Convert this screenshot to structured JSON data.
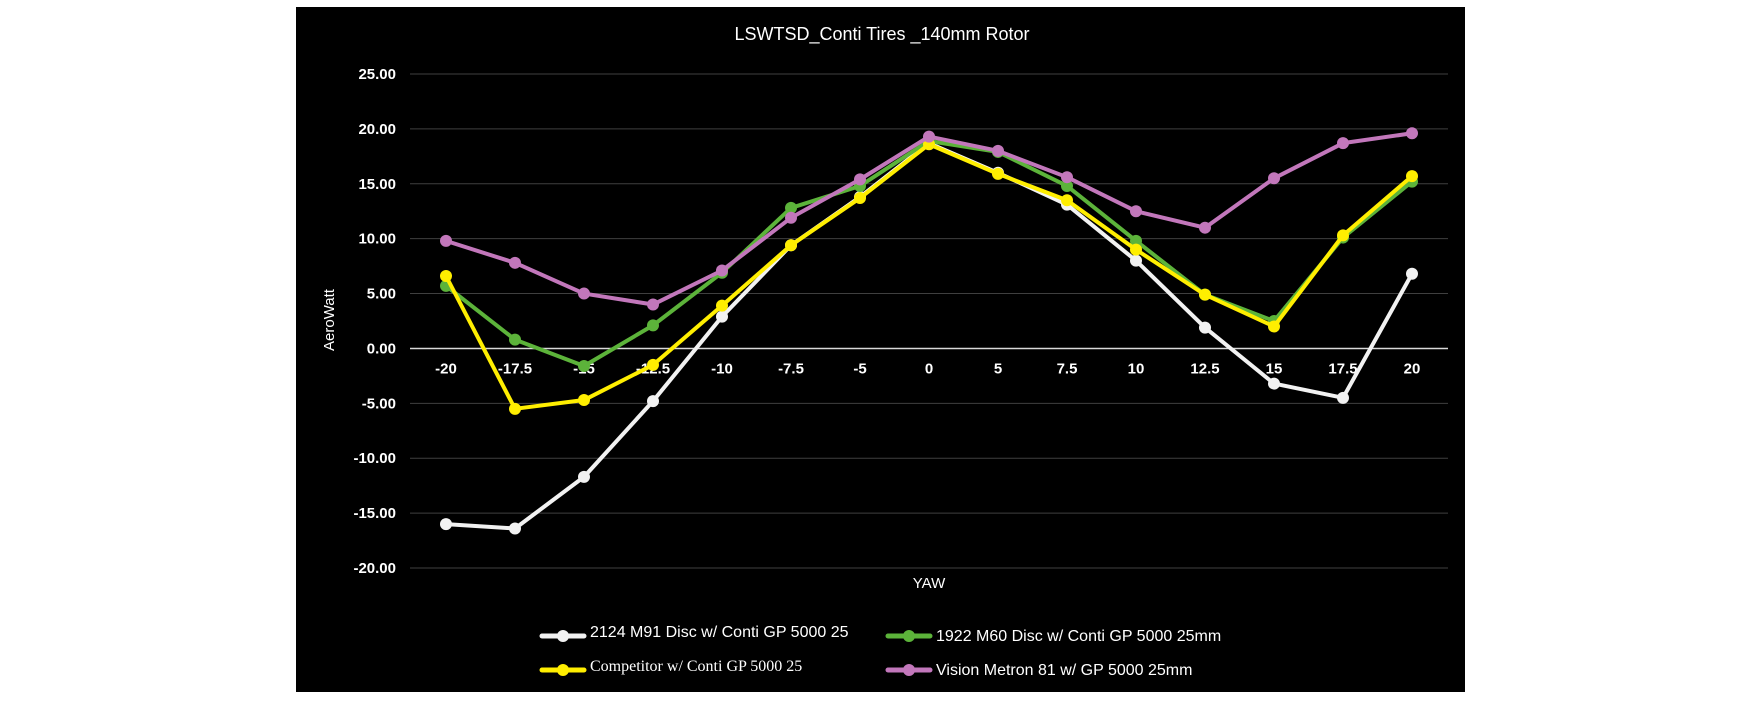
{
  "chart_data": {
    "type": "line",
    "title": "LSWTSD_Conti Tires _140mm Rotor",
    "xlabel": "YAW",
    "ylabel": "AeroWatt",
    "x": [
      "-20",
      "-17.5",
      "-15",
      "-12.5",
      "-10",
      "-7.5",
      "-5",
      "0",
      "5",
      "7.5",
      "10",
      "12.5",
      "15",
      "17.5",
      "20"
    ],
    "ylim": [
      -20,
      25
    ],
    "yticks": [
      "25.00",
      "20.00",
      "15.00",
      "10.00",
      "5.00",
      "0.00",
      "-5.00",
      "-10.00",
      "-15.00",
      "-20.00"
    ],
    "grid": true,
    "legend_position": "bottom",
    "series": [
      {
        "name": "2124 M91 Disc w/ Conti GP 5000 25",
        "color": "#f2f2f2",
        "values": [
          -16.0,
          -16.4,
          -11.7,
          -4.8,
          2.9,
          9.4,
          13.8,
          18.7,
          16.0,
          13.1,
          8.0,
          1.9,
          -3.2,
          -4.5,
          6.8
        ]
      },
      {
        "name": "1922 M60 Disc w/ Conti GP 5000 25mm",
        "color": "#5cb33a",
        "values": [
          5.7,
          0.8,
          -1.6,
          2.1,
          6.9,
          12.8,
          14.8,
          18.9,
          17.9,
          14.8,
          9.8,
          4.9,
          2.5,
          10.1,
          15.2
        ]
      },
      {
        "name": "Competitor  w/ Conti GP 5000 25",
        "color": "#ffee00",
        "values": [
          6.6,
          -5.5,
          -4.7,
          -1.5,
          3.9,
          9.4,
          13.7,
          18.6,
          15.9,
          13.5,
          9.0,
          4.9,
          2.0,
          10.3,
          15.7
        ]
      },
      {
        "name": "Vision Metron 81 w/ GP 5000 25mm",
        "color": "#c277bb",
        "values": [
          9.8,
          7.8,
          5.0,
          4.0,
          7.1,
          11.9,
          15.4,
          19.3,
          18.0,
          15.6,
          12.5,
          11.0,
          15.5,
          18.7,
          19.6
        ]
      }
    ]
  }
}
